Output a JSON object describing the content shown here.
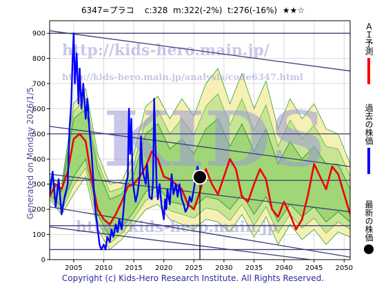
{
  "header": {
    "code_name": "6347=プラコ",
    "current": "c:328",
    "m": "m:322(-2%)",
    "t": "t:276(-16%)",
    "rating": "★★☆"
  },
  "generated": "Generated on Monday 2026/1/5.",
  "copyright": "Copyright (c) Kids-Hero Research Institute. All Rights Reserved.",
  "watermarks": {
    "url_main": "http://kids-hero.main.jp/",
    "url_analysis": "http://kids-hero.main.jp/analysis/code6347.html",
    "big": "KIDS",
    "bottom": "http://kids-hero.main.jp"
  },
  "legend": [
    {
      "label": "ＡＩ予測",
      "color": "#ff0000"
    },
    {
      "label": "過去の株価",
      "color": "#0000ff"
    },
    {
      "label": "最新の株価",
      "color": "#000000"
    }
  ],
  "colors": {
    "past": "#0000ff",
    "ai": "#ee0000",
    "band_dark": "#2e9e2e",
    "band_light": "#b8e08a",
    "band_yellow": "#f6f0b4"
  },
  "chart_data": {
    "type": "line",
    "xlim": [
      2001.0,
      2051.0
    ],
    "ylim": [
      0,
      950
    ],
    "x_ticks": [
      2005,
      2010,
      2015,
      2020,
      2025,
      2030,
      2035,
      2040,
      2045,
      2050
    ],
    "y_ticks": [
      0,
      100,
      200,
      300,
      400,
      500,
      600,
      700,
      800,
      900
    ],
    "latest_point": {
      "x": 2026.0,
      "y": 328
    },
    "trend_lines": [
      {
        "x": [
          2001,
          2051
        ],
        "y": [
          910,
          750
        ]
      },
      {
        "x": [
          2001,
          2051
        ],
        "y": [
          530,
          370
        ]
      },
      {
        "x": [
          2001,
          2051
        ],
        "y": [
          340,
          190
        ]
      },
      {
        "x": [
          2001,
          2051
        ],
        "y": [
          210,
          10
        ]
      },
      {
        "x": [
          2001,
          2051
        ],
        "y": [
          130,
          -20
        ]
      },
      {
        "x": [
          2001,
          2051
        ],
        "y": [
          900,
          900
        ]
      },
      {
        "x": [
          2001,
          2051
        ],
        "y": [
          500,
          500
        ]
      },
      {
        "x": [
          2001,
          2051
        ],
        "y": [
          315,
          315
        ]
      },
      {
        "x": [
          2001,
          2051
        ],
        "y": [
          135,
          135
        ]
      },
      {
        "x": [
          2001,
          2051
        ],
        "y": [
          40,
          40
        ]
      }
    ],
    "band_outer_upper": [
      [
        2001,
        330
      ],
      [
        2003,
        300
      ],
      [
        2005,
        620
      ],
      [
        2007,
        680
      ],
      [
        2009,
        420
      ],
      [
        2011,
        300
      ],
      [
        2013,
        310
      ],
      [
        2015,
        420
      ],
      [
        2017,
        610
      ],
      [
        2019,
        650
      ],
      [
        2021,
        560
      ],
      [
        2023,
        640
      ],
      [
        2025,
        570
      ],
      [
        2027,
        700
      ],
      [
        2029,
        760
      ],
      [
        2031,
        620
      ],
      [
        2033,
        740
      ],
      [
        2035,
        600
      ],
      [
        2037,
        710
      ],
      [
        2039,
        520
      ],
      [
        2041,
        640
      ],
      [
        2043,
        560
      ],
      [
        2045,
        620
      ],
      [
        2047,
        520
      ],
      [
        2049,
        500
      ],
      [
        2051,
        380
      ]
    ],
    "band_outer_lower": [
      [
        2001,
        240
      ],
      [
        2003,
        180
      ],
      [
        2005,
        260
      ],
      [
        2007,
        330
      ],
      [
        2009,
        120
      ],
      [
        2011,
        40
      ],
      [
        2013,
        80
      ],
      [
        2015,
        140
      ],
      [
        2017,
        200
      ],
      [
        2019,
        220
      ],
      [
        2021,
        160
      ],
      [
        2023,
        140
      ],
      [
        2025,
        120
      ],
      [
        2027,
        160
      ],
      [
        2029,
        150
      ],
      [
        2031,
        110
      ],
      [
        2033,
        180
      ],
      [
        2035,
        90
      ],
      [
        2037,
        170
      ],
      [
        2039,
        60
      ],
      [
        2041,
        140
      ],
      [
        2043,
        80
      ],
      [
        2045,
        120
      ],
      [
        2047,
        60
      ],
      [
        2049,
        110
      ],
      [
        2051,
        90
      ]
    ],
    "band_inner_upper": [
      [
        2001,
        310
      ],
      [
        2003,
        270
      ],
      [
        2005,
        560
      ],
      [
        2007,
        600
      ],
      [
        2009,
        360
      ],
      [
        2011,
        240
      ],
      [
        2013,
        260
      ],
      [
        2015,
        340
      ],
      [
        2017,
        500
      ],
      [
        2019,
        540
      ],
      [
        2021,
        440
      ],
      [
        2023,
        480
      ],
      [
        2025,
        420
      ],
      [
        2027,
        520
      ],
      [
        2029,
        560
      ],
      [
        2031,
        450
      ],
      [
        2033,
        540
      ],
      [
        2035,
        430
      ],
      [
        2037,
        520
      ],
      [
        2039,
        380
      ],
      [
        2041,
        470
      ],
      [
        2043,
        400
      ],
      [
        2045,
        450
      ],
      [
        2047,
        380
      ],
      [
        2049,
        380
      ],
      [
        2051,
        280
      ]
    ],
    "band_inner_lower": [
      [
        2001,
        260
      ],
      [
        2003,
        210
      ],
      [
        2005,
        330
      ],
      [
        2007,
        400
      ],
      [
        2009,
        180
      ],
      [
        2011,
        90
      ],
      [
        2013,
        130
      ],
      [
        2015,
        190
      ],
      [
        2017,
        270
      ],
      [
        2019,
        290
      ],
      [
        2021,
        230
      ],
      [
        2023,
        220
      ],
      [
        2025,
        210
      ],
      [
        2027,
        250
      ],
      [
        2029,
        240
      ],
      [
        2031,
        200
      ],
      [
        2033,
        260
      ],
      [
        2035,
        180
      ],
      [
        2037,
        250
      ],
      [
        2039,
        150
      ],
      [
        2041,
        220
      ],
      [
        2043,
        170
      ],
      [
        2045,
        210
      ],
      [
        2047,
        150
      ],
      [
        2049,
        190
      ],
      [
        2051,
        150
      ]
    ],
    "series": [
      {
        "name": "過去の株価",
        "points": [
          [
            2001.0,
            260
          ],
          [
            2001.5,
            350
          ],
          [
            2002.0,
            210
          ],
          [
            2002.5,
            320
          ],
          [
            2003.0,
            180
          ],
          [
            2003.5,
            250
          ],
          [
            2004.0,
            300
          ],
          [
            2004.3,
            520
          ],
          [
            2004.6,
            620
          ],
          [
            2004.8,
            780
          ],
          [
            2005.0,
            900
          ],
          [
            2005.2,
            700
          ],
          [
            2005.5,
            820
          ],
          [
            2005.8,
            620
          ],
          [
            2006.0,
            760
          ],
          [
            2006.3,
            600
          ],
          [
            2006.6,
            700
          ],
          [
            2007.0,
            560
          ],
          [
            2007.3,
            640
          ],
          [
            2007.6,
            520
          ],
          [
            2008.0,
            420
          ],
          [
            2008.3,
            300
          ],
          [
            2008.6,
            200
          ],
          [
            2009.0,
            120
          ],
          [
            2009.3,
            60
          ],
          [
            2009.6,
            40
          ],
          [
            2010.0,
            60
          ],
          [
            2010.3,
            40
          ],
          [
            2010.6,
            90
          ],
          [
            2011.0,
            70
          ],
          [
            2011.3,
            120
          ],
          [
            2011.6,
            90
          ],
          [
            2012.0,
            140
          ],
          [
            2012.3,
            110
          ],
          [
            2012.6,
            160
          ],
          [
            2013.0,
            120
          ],
          [
            2013.3,
            200
          ],
          [
            2013.6,
            290
          ],
          [
            2014.0,
            330
          ],
          [
            2014.2,
            600
          ],
          [
            2014.4,
            420
          ],
          [
            2014.6,
            560
          ],
          [
            2014.8,
            320
          ],
          [
            2015.0,
            280
          ],
          [
            2015.3,
            230
          ],
          [
            2015.6,
            260
          ],
          [
            2016.0,
            330
          ],
          [
            2016.2,
            490
          ],
          [
            2016.4,
            380
          ],
          [
            2016.6,
            340
          ],
          [
            2017.0,
            300
          ],
          [
            2017.2,
            380
          ],
          [
            2017.4,
            320
          ],
          [
            2017.6,
            250
          ],
          [
            2018.0,
            240
          ],
          [
            2018.2,
            310
          ],
          [
            2018.4,
            640
          ],
          [
            2018.6,
            460
          ],
          [
            2018.8,
            300
          ],
          [
            2019.0,
            240
          ],
          [
            2019.3,
            300
          ],
          [
            2019.6,
            220
          ],
          [
            2020.0,
            160
          ],
          [
            2020.2,
            240
          ],
          [
            2020.4,
            200
          ],
          [
            2020.6,
            280
          ],
          [
            2021.0,
            220
          ],
          [
            2021.3,
            340
          ],
          [
            2021.6,
            260
          ],
          [
            2022.0,
            300
          ],
          [
            2022.3,
            250
          ],
          [
            2022.6,
            300
          ],
          [
            2023.0,
            240
          ],
          [
            2023.3,
            220
          ],
          [
            2023.6,
            190
          ],
          [
            2024.0,
            210
          ],
          [
            2024.3,
            250
          ],
          [
            2024.6,
            230
          ],
          [
            2025.0,
            280
          ],
          [
            2025.3,
            330
          ],
          [
            2025.6,
            370
          ],
          [
            2026.0,
            328
          ]
        ]
      },
      {
        "name": "ＡＩ予測",
        "points": [
          [
            2001.0,
            250
          ],
          [
            2002.0,
            300
          ],
          [
            2003.0,
            280
          ],
          [
            2004.0,
            350
          ],
          [
            2005.0,
            480
          ],
          [
            2006.0,
            500
          ],
          [
            2007.0,
            470
          ],
          [
            2008.0,
            320
          ],
          [
            2009.0,
            200
          ],
          [
            2010.0,
            160
          ],
          [
            2011.0,
            140
          ],
          [
            2012.0,
            180
          ],
          [
            2013.0,
            230
          ],
          [
            2014.0,
            290
          ],
          [
            2015.0,
            300
          ],
          [
            2016.0,
            330
          ],
          [
            2017.0,
            370
          ],
          [
            2018.0,
            430
          ],
          [
            2019.0,
            400
          ],
          [
            2020.0,
            330
          ],
          [
            2021.0,
            320
          ],
          [
            2022.0,
            300
          ],
          [
            2023.0,
            280
          ],
          [
            2024.0,
            220
          ],
          [
            2025.0,
            200
          ],
          [
            2026.0,
            270
          ],
          [
            2027.0,
            360
          ],
          [
            2028.0,
            300
          ],
          [
            2029.0,
            260
          ],
          [
            2030.0,
            330
          ],
          [
            2031.0,
            400
          ],
          [
            2032.0,
            360
          ],
          [
            2033.0,
            250
          ],
          [
            2034.0,
            230
          ],
          [
            2035.0,
            300
          ],
          [
            2036.0,
            360
          ],
          [
            2037.0,
            320
          ],
          [
            2038.0,
            200
          ],
          [
            2039.0,
            170
          ],
          [
            2040.0,
            230
          ],
          [
            2041.0,
            180
          ],
          [
            2042.0,
            120
          ],
          [
            2043.0,
            160
          ],
          [
            2044.0,
            260
          ],
          [
            2045.0,
            380
          ],
          [
            2046.0,
            330
          ],
          [
            2047.0,
            280
          ],
          [
            2048.0,
            370
          ],
          [
            2049.0,
            340
          ],
          [
            2050.0,
            260
          ],
          [
            2051.0,
            180
          ]
        ]
      }
    ]
  }
}
